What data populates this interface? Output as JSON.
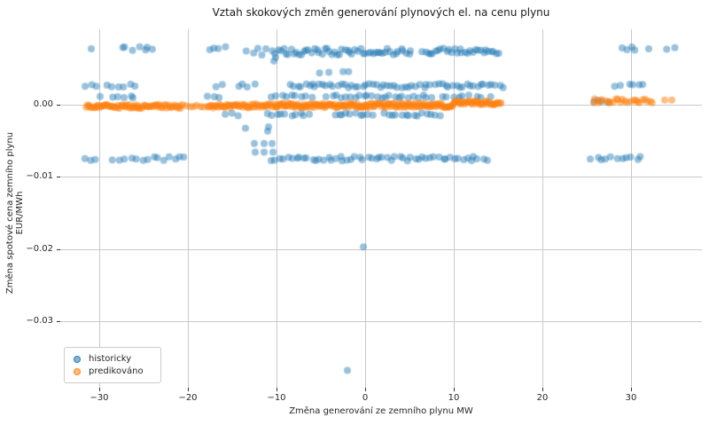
{
  "chart_data": {
    "type": "scatter",
    "title": "Vztah skokových změn generování plynových el. na cenu plynu",
    "xlabel": "Změna generování ze zemního plynu MW",
    "ylabel": "Změna spotové cena zemního plynu EUR/MWh",
    "xlim": [
      -34.4,
      38.0
    ],
    "ylim": [
      -0.0392,
      0.0104
    ],
    "xticks": [
      -30,
      -20,
      -10,
      0,
      10,
      20,
      30
    ],
    "xtick_labels": [
      "−30",
      "−20",
      "−10",
      "0",
      "10",
      "20",
      "30"
    ],
    "yticks": [
      0.0,
      -0.01,
      -0.02,
      -0.03
    ],
    "ytick_labels": [
      "0.00",
      "−0.01",
      "−0.02",
      "−0.03"
    ],
    "grid": true,
    "grid_color": "#c9c9c9",
    "tick_color": "#333333",
    "legend": {
      "position": "lower left",
      "entries": [
        {
          "label": "historicky",
          "color": "#1f77b4"
        },
        {
          "label": "predikováno",
          "color": "#ff7f0e"
        }
      ]
    },
    "series": [
      {
        "name": "historicky",
        "color": "#1f77b4",
        "alpha": 0.45,
        "radius": 4,
        "clusters": [
          [
            -27.5,
            -26.4,
            0.0077,
            3,
            0.00028
          ],
          [
            -25.5,
            -23.9,
            0.0077,
            4,
            0.00028
          ],
          [
            -17.5,
            -15.9,
            0.0077,
            4,
            0.00028
          ],
          [
            -13.2,
            -11.2,
            0.0073,
            5,
            0.0006
          ],
          [
            -10.4,
            5.2,
            0.0073,
            55,
            0.00045
          ],
          [
            6.5,
            15.1,
            0.0074,
            30,
            0.0004
          ],
          [
            28.8,
            30.5,
            0.0077,
            4,
            0.00028
          ],
          [
            33.8,
            34.6,
            0.0077,
            2,
            0.0002
          ],
          [
            -4.9,
            -1.9,
            0.0044,
            4,
            0.0002
          ],
          [
            -31.4,
            -26.0,
            0.0026,
            9,
            0.00024
          ],
          [
            -16.9,
            -16.0,
            0.0026,
            2,
            0.0002
          ],
          [
            -14.4,
            -12.5,
            0.0026,
            4,
            0.00024
          ],
          [
            -8.4,
            15.5,
            0.0026,
            60,
            0.00028
          ],
          [
            28.3,
            31.6,
            0.0026,
            6,
            0.00024
          ],
          [
            -28.5,
            -26.0,
            0.0011,
            5,
            0.0002
          ],
          [
            -17.7,
            -16.5,
            0.0011,
            3,
            0.0002
          ],
          [
            -10.4,
            -6.2,
            0.0011,
            9,
            0.0002
          ],
          [
            -4.2,
            -0.2,
            0.0011,
            9,
            0.0002
          ],
          [
            0.3,
            5.8,
            0.0011,
            12,
            0.0002
          ],
          [
            6.4,
            13.9,
            0.0011,
            12,
            0.0002
          ],
          [
            25.8,
            27.5,
            0.0004,
            4,
            0.0002
          ],
          [
            -15.5,
            -14.2,
            -0.0014,
            3,
            0.00022
          ],
          [
            -10.9,
            -6.4,
            -0.0014,
            10,
            0.00022
          ],
          [
            -3.5,
            0.8,
            -0.0014,
            10,
            0.00022
          ],
          [
            2.0,
            8.5,
            -0.0014,
            14,
            0.00022
          ],
          [
            -31.4,
            -30.2,
            -0.0075,
            3,
            0.00026
          ],
          [
            -28.4,
            -20.2,
            -0.0075,
            14,
            0.00026
          ],
          [
            -10.5,
            13.7,
            -0.0075,
            55,
            0.0003
          ],
          [
            25.6,
            31.1,
            -0.0074,
            11,
            0.00026
          ]
        ],
        "points": [
          [
            -30.9,
            0.0077
          ],
          [
            32.0,
            0.0077
          ],
          [
            -10.1,
            0.0065
          ],
          [
            -10.3,
            0.006
          ],
          [
            -29.9,
            0.0011
          ],
          [
            -13.5,
            -0.0033
          ],
          [
            -10.9,
            -0.0031
          ],
          [
            -11.0,
            -0.0037
          ],
          [
            -12.5,
            -0.0054
          ],
          [
            -11.4,
            -0.0054
          ],
          [
            -10.5,
            -0.0054
          ],
          [
            -12.4,
            -0.0066
          ],
          [
            -11.4,
            -0.0066
          ],
          [
            -10.4,
            -0.0066
          ],
          [
            -0.2,
            -0.0197
          ],
          [
            -2.0,
            -0.0368
          ]
        ]
      },
      {
        "name": "predikováno",
        "color": "#ff7f0e",
        "alpha": 0.5,
        "radius": 4,
        "clusters": [
          [
            -31.5,
            -25.6,
            -0.0003,
            40,
            0.00028
          ],
          [
            -25.6,
            -20.9,
            -0.0003,
            30,
            0.00026
          ],
          [
            -20.9,
            -17.5,
            -0.0002,
            10,
            0.0002
          ],
          [
            -17.5,
            -10.0,
            -0.0002,
            50,
            0.00028
          ],
          [
            -10.0,
            0.0,
            -0.00015,
            80,
            0.0003
          ],
          [
            0.0,
            10.0,
            -0.0001,
            80,
            0.0003
          ],
          [
            10.0,
            15.3,
            0.0002,
            40,
            0.00026
          ],
          [
            25.7,
            32.5,
            0.0005,
            25,
            0.00026
          ]
        ],
        "points": [
          [
            33.8,
            0.0006
          ],
          [
            34.6,
            0.0006
          ]
        ]
      }
    ]
  }
}
